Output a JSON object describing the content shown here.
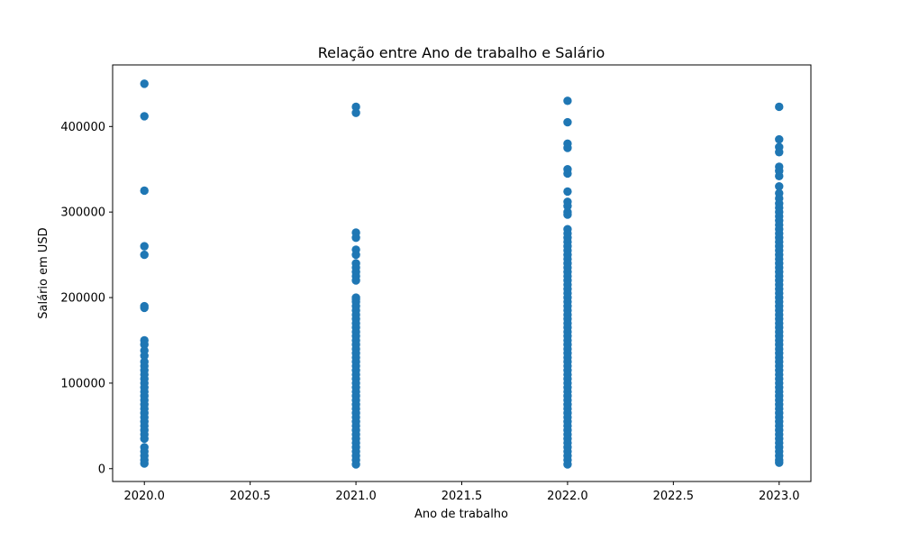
{
  "chart_data": {
    "type": "scatter",
    "title": "Relação entre Ano de trabalho e Salário",
    "xlabel": "Ano de trabalho",
    "ylabel": "Salário em USD",
    "xlim": [
      2019.85,
      2023.15
    ],
    "ylim": [
      -15000,
      472000
    ],
    "x_ticks": [
      2020.0,
      2020.5,
      2021.0,
      2021.5,
      2022.0,
      2022.5,
      2023.0
    ],
    "x_tick_labels": [
      "2020.0",
      "2020.5",
      "2021.0",
      "2021.5",
      "2022.0",
      "2022.5",
      "2023.0"
    ],
    "y_ticks": [
      0,
      100000,
      200000,
      300000,
      400000
    ],
    "y_tick_labels": [
      "0",
      "100000",
      "200000",
      "300000",
      "400000"
    ],
    "grid": false,
    "marker_color": "#1f77b4",
    "series": [
      {
        "points": [
          {
            "x": 2020,
            "y": 450000
          },
          {
            "x": 2020,
            "y": 412000
          },
          {
            "x": 2020,
            "y": 325000
          },
          {
            "x": 2020,
            "y": 260000
          },
          {
            "x": 2020,
            "y": 250000
          },
          {
            "x": 2020,
            "y": 190000
          },
          {
            "x": 2020,
            "y": 188000
          },
          {
            "x": 2020,
            "y": 150000
          },
          {
            "x": 2020,
            "y": 145000
          },
          {
            "x": 2020,
            "y": 138000
          },
          {
            "x": 2020,
            "y": 132000
          },
          {
            "x": 2020,
            "y": 125000
          },
          {
            "x": 2020,
            "y": 120000
          },
          {
            "x": 2020,
            "y": 115000
          },
          {
            "x": 2020,
            "y": 110000
          },
          {
            "x": 2020,
            "y": 105000
          },
          {
            "x": 2020,
            "y": 100000
          },
          {
            "x": 2020,
            "y": 95000
          },
          {
            "x": 2020,
            "y": 90000
          },
          {
            "x": 2020,
            "y": 85000
          },
          {
            "x": 2020,
            "y": 80000
          },
          {
            "x": 2020,
            "y": 75000
          },
          {
            "x": 2020,
            "y": 70000
          },
          {
            "x": 2020,
            "y": 65000
          },
          {
            "x": 2020,
            "y": 60000
          },
          {
            "x": 2020,
            "y": 55000
          },
          {
            "x": 2020,
            "y": 50000
          },
          {
            "x": 2020,
            "y": 45000
          },
          {
            "x": 2020,
            "y": 40000
          },
          {
            "x": 2020,
            "y": 35000
          },
          {
            "x": 2020,
            "y": 25000
          },
          {
            "x": 2020,
            "y": 20000
          },
          {
            "x": 2020,
            "y": 15000
          },
          {
            "x": 2020,
            "y": 10000
          },
          {
            "x": 2020,
            "y": 6000
          },
          {
            "x": 2021,
            "y": 423000
          },
          {
            "x": 2021,
            "y": 416000
          },
          {
            "x": 2021,
            "y": 276000
          },
          {
            "x": 2021,
            "y": 270000
          },
          {
            "x": 2021,
            "y": 256000
          },
          {
            "x": 2021,
            "y": 250000
          },
          {
            "x": 2021,
            "y": 240000
          },
          {
            "x": 2021,
            "y": 235000
          },
          {
            "x": 2021,
            "y": 230000
          },
          {
            "x": 2021,
            "y": 225000
          },
          {
            "x": 2021,
            "y": 220000
          },
          {
            "x": 2021,
            "y": 200000
          },
          {
            "x": 2021,
            "y": 198000
          },
          {
            "x": 2021,
            "y": 195000
          },
          {
            "x": 2021,
            "y": 190000
          },
          {
            "x": 2021,
            "y": 185000
          },
          {
            "x": 2021,
            "y": 180000
          },
          {
            "x": 2021,
            "y": 175000
          },
          {
            "x": 2021,
            "y": 170000
          },
          {
            "x": 2021,
            "y": 165000
          },
          {
            "x": 2021,
            "y": 160000
          },
          {
            "x": 2021,
            "y": 155000
          },
          {
            "x": 2021,
            "y": 150000
          },
          {
            "x": 2021,
            "y": 145000
          },
          {
            "x": 2021,
            "y": 140000
          },
          {
            "x": 2021,
            "y": 135000
          },
          {
            "x": 2021,
            "y": 130000
          },
          {
            "x": 2021,
            "y": 125000
          },
          {
            "x": 2021,
            "y": 120000
          },
          {
            "x": 2021,
            "y": 115000
          },
          {
            "x": 2021,
            "y": 110000
          },
          {
            "x": 2021,
            "y": 105000
          },
          {
            "x": 2021,
            "y": 100000
          },
          {
            "x": 2021,
            "y": 95000
          },
          {
            "x": 2021,
            "y": 90000
          },
          {
            "x": 2021,
            "y": 85000
          },
          {
            "x": 2021,
            "y": 80000
          },
          {
            "x": 2021,
            "y": 75000
          },
          {
            "x": 2021,
            "y": 70000
          },
          {
            "x": 2021,
            "y": 65000
          },
          {
            "x": 2021,
            "y": 60000
          },
          {
            "x": 2021,
            "y": 55000
          },
          {
            "x": 2021,
            "y": 50000
          },
          {
            "x": 2021,
            "y": 45000
          },
          {
            "x": 2021,
            "y": 40000
          },
          {
            "x": 2021,
            "y": 35000
          },
          {
            "x": 2021,
            "y": 30000
          },
          {
            "x": 2021,
            "y": 25000
          },
          {
            "x": 2021,
            "y": 20000
          },
          {
            "x": 2021,
            "y": 15000
          },
          {
            "x": 2021,
            "y": 10000
          },
          {
            "x": 2021,
            "y": 5000
          },
          {
            "x": 2022,
            "y": 430000
          },
          {
            "x": 2022,
            "y": 405000
          },
          {
            "x": 2022,
            "y": 380000
          },
          {
            "x": 2022,
            "y": 375000
          },
          {
            "x": 2022,
            "y": 350000
          },
          {
            "x": 2022,
            "y": 345000
          },
          {
            "x": 2022,
            "y": 324000
          },
          {
            "x": 2022,
            "y": 312000
          },
          {
            "x": 2022,
            "y": 307000
          },
          {
            "x": 2022,
            "y": 300000
          },
          {
            "x": 2022,
            "y": 297000
          },
          {
            "x": 2022,
            "y": 280000
          },
          {
            "x": 2022,
            "y": 275000
          },
          {
            "x": 2022,
            "y": 270000
          },
          {
            "x": 2022,
            "y": 265000
          },
          {
            "x": 2022,
            "y": 260000
          },
          {
            "x": 2022,
            "y": 255000
          },
          {
            "x": 2022,
            "y": 250000
          },
          {
            "x": 2022,
            "y": 245000
          },
          {
            "x": 2022,
            "y": 240000
          },
          {
            "x": 2022,
            "y": 235000
          },
          {
            "x": 2022,
            "y": 230000
          },
          {
            "x": 2022,
            "y": 225000
          },
          {
            "x": 2022,
            "y": 220000
          },
          {
            "x": 2022,
            "y": 215000
          },
          {
            "x": 2022,
            "y": 210000
          },
          {
            "x": 2022,
            "y": 205000
          },
          {
            "x": 2022,
            "y": 200000
          },
          {
            "x": 2022,
            "y": 195000
          },
          {
            "x": 2022,
            "y": 190000
          },
          {
            "x": 2022,
            "y": 185000
          },
          {
            "x": 2022,
            "y": 180000
          },
          {
            "x": 2022,
            "y": 175000
          },
          {
            "x": 2022,
            "y": 170000
          },
          {
            "x": 2022,
            "y": 165000
          },
          {
            "x": 2022,
            "y": 160000
          },
          {
            "x": 2022,
            "y": 155000
          },
          {
            "x": 2022,
            "y": 150000
          },
          {
            "x": 2022,
            "y": 145000
          },
          {
            "x": 2022,
            "y": 140000
          },
          {
            "x": 2022,
            "y": 135000
          },
          {
            "x": 2022,
            "y": 130000
          },
          {
            "x": 2022,
            "y": 125000
          },
          {
            "x": 2022,
            "y": 120000
          },
          {
            "x": 2022,
            "y": 115000
          },
          {
            "x": 2022,
            "y": 110000
          },
          {
            "x": 2022,
            "y": 105000
          },
          {
            "x": 2022,
            "y": 100000
          },
          {
            "x": 2022,
            "y": 95000
          },
          {
            "x": 2022,
            "y": 90000
          },
          {
            "x": 2022,
            "y": 85000
          },
          {
            "x": 2022,
            "y": 80000
          },
          {
            "x": 2022,
            "y": 75000
          },
          {
            "x": 2022,
            "y": 70000
          },
          {
            "x": 2022,
            "y": 65000
          },
          {
            "x": 2022,
            "y": 60000
          },
          {
            "x": 2022,
            "y": 55000
          },
          {
            "x": 2022,
            "y": 50000
          },
          {
            "x": 2022,
            "y": 45000
          },
          {
            "x": 2022,
            "y": 40000
          },
          {
            "x": 2022,
            "y": 35000
          },
          {
            "x": 2022,
            "y": 30000
          },
          {
            "x": 2022,
            "y": 25000
          },
          {
            "x": 2022,
            "y": 20000
          },
          {
            "x": 2022,
            "y": 15000
          },
          {
            "x": 2022,
            "y": 10000
          },
          {
            "x": 2022,
            "y": 5000
          },
          {
            "x": 2023,
            "y": 423000
          },
          {
            "x": 2023,
            "y": 385000
          },
          {
            "x": 2023,
            "y": 376000
          },
          {
            "x": 2023,
            "y": 370000
          },
          {
            "x": 2023,
            "y": 353000
          },
          {
            "x": 2023,
            "y": 348000
          },
          {
            "x": 2023,
            "y": 342000
          },
          {
            "x": 2023,
            "y": 330000
          },
          {
            "x": 2023,
            "y": 322000
          },
          {
            "x": 2023,
            "y": 316000
          },
          {
            "x": 2023,
            "y": 310000
          },
          {
            "x": 2023,
            "y": 305000
          },
          {
            "x": 2023,
            "y": 300000
          },
          {
            "x": 2023,
            "y": 295000
          },
          {
            "x": 2023,
            "y": 290000
          },
          {
            "x": 2023,
            "y": 285000
          },
          {
            "x": 2023,
            "y": 280000
          },
          {
            "x": 2023,
            "y": 275000
          },
          {
            "x": 2023,
            "y": 270000
          },
          {
            "x": 2023,
            "y": 265000
          },
          {
            "x": 2023,
            "y": 260000
          },
          {
            "x": 2023,
            "y": 255000
          },
          {
            "x": 2023,
            "y": 250000
          },
          {
            "x": 2023,
            "y": 245000
          },
          {
            "x": 2023,
            "y": 240000
          },
          {
            "x": 2023,
            "y": 235000
          },
          {
            "x": 2023,
            "y": 230000
          },
          {
            "x": 2023,
            "y": 225000
          },
          {
            "x": 2023,
            "y": 220000
          },
          {
            "x": 2023,
            "y": 215000
          },
          {
            "x": 2023,
            "y": 210000
          },
          {
            "x": 2023,
            "y": 205000
          },
          {
            "x": 2023,
            "y": 200000
          },
          {
            "x": 2023,
            "y": 195000
          },
          {
            "x": 2023,
            "y": 190000
          },
          {
            "x": 2023,
            "y": 185000
          },
          {
            "x": 2023,
            "y": 180000
          },
          {
            "x": 2023,
            "y": 175000
          },
          {
            "x": 2023,
            "y": 170000
          },
          {
            "x": 2023,
            "y": 165000
          },
          {
            "x": 2023,
            "y": 160000
          },
          {
            "x": 2023,
            "y": 155000
          },
          {
            "x": 2023,
            "y": 150000
          },
          {
            "x": 2023,
            "y": 145000
          },
          {
            "x": 2023,
            "y": 140000
          },
          {
            "x": 2023,
            "y": 135000
          },
          {
            "x": 2023,
            "y": 130000
          },
          {
            "x": 2023,
            "y": 125000
          },
          {
            "x": 2023,
            "y": 120000
          },
          {
            "x": 2023,
            "y": 115000
          },
          {
            "x": 2023,
            "y": 110000
          },
          {
            "x": 2023,
            "y": 105000
          },
          {
            "x": 2023,
            "y": 100000
          },
          {
            "x": 2023,
            "y": 95000
          },
          {
            "x": 2023,
            "y": 90000
          },
          {
            "x": 2023,
            "y": 85000
          },
          {
            "x": 2023,
            "y": 80000
          },
          {
            "x": 2023,
            "y": 75000
          },
          {
            "x": 2023,
            "y": 70000
          },
          {
            "x": 2023,
            "y": 65000
          },
          {
            "x": 2023,
            "y": 60000
          },
          {
            "x": 2023,
            "y": 55000
          },
          {
            "x": 2023,
            "y": 50000
          },
          {
            "x": 2023,
            "y": 45000
          },
          {
            "x": 2023,
            "y": 40000
          },
          {
            "x": 2023,
            "y": 35000
          },
          {
            "x": 2023,
            "y": 30000
          },
          {
            "x": 2023,
            "y": 25000
          },
          {
            "x": 2023,
            "y": 20000
          },
          {
            "x": 2023,
            "y": 15000
          },
          {
            "x": 2023,
            "y": 10000
          },
          {
            "x": 2023,
            "y": 7000
          }
        ]
      }
    ]
  }
}
